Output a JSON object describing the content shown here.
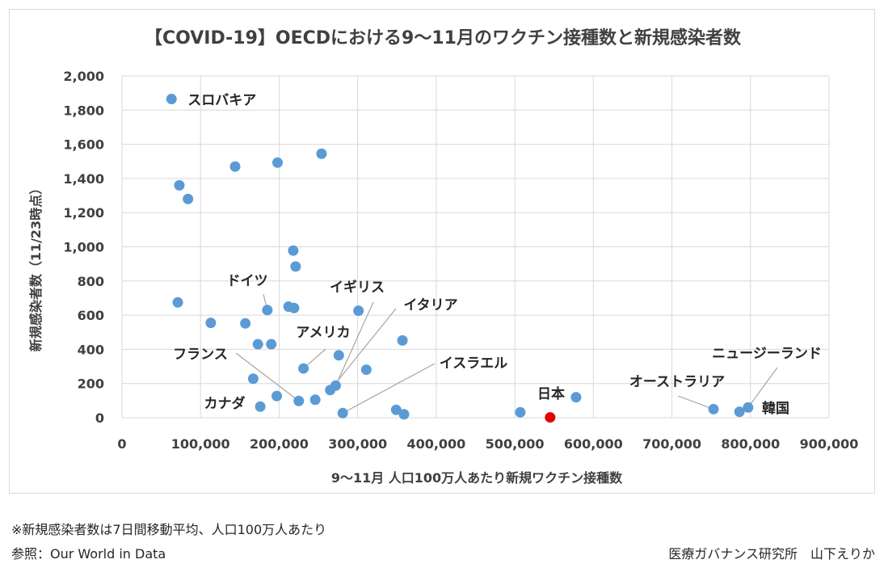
{
  "chart_data": {
    "type": "scatter",
    "title": "【COVID-19】OECDにおける9〜11月のワクチン接種数と新規感染者数",
    "xlabel": "9〜11月 人口100万人あたり新規ワクチン接種数",
    "ylabel": "新規感染者数（11/23時点）",
    "xlim": [
      0,
      900000
    ],
    "ylim": [
      0,
      2000
    ],
    "x_ticks": [
      0,
      100000,
      200000,
      300000,
      400000,
      500000,
      600000,
      700000,
      800000,
      900000
    ],
    "x_tick_labels": [
      "0",
      "100,000",
      "200,000",
      "300,000",
      "400,000",
      "500,000",
      "600,000",
      "700,000",
      "800,000",
      "900,000"
    ],
    "y_ticks": [
      0,
      200,
      400,
      600,
      800,
      1000,
      1200,
      1400,
      1600,
      1800,
      2000
    ],
    "y_tick_labels": [
      "0",
      "200",
      "400",
      "600",
      "800",
      "1,000",
      "1,200",
      "1,400",
      "1,600",
      "1,800",
      "2,000"
    ],
    "grid": true,
    "colors": {
      "point": "#5b9bd5",
      "highlight": "#e60000",
      "grid": "#d9d9d9",
      "leader": "#a6a6a6"
    },
    "points": [
      {
        "x": 63000,
        "y": 1865,
        "label": "スロバキア"
      },
      {
        "x": 73000,
        "y": 1360
      },
      {
        "x": 84000,
        "y": 1280
      },
      {
        "x": 71000,
        "y": 675
      },
      {
        "x": 113000,
        "y": 555
      },
      {
        "x": 144000,
        "y": 1470
      },
      {
        "x": 157000,
        "y": 552
      },
      {
        "x": 167000,
        "y": 228
      },
      {
        "x": 173000,
        "y": 430
      },
      {
        "x": 176000,
        "y": 65,
        "label": "カナダ"
      },
      {
        "x": 185000,
        "y": 630,
        "label": "ドイツ"
      },
      {
        "x": 190000,
        "y": 430
      },
      {
        "x": 198000,
        "y": 1493
      },
      {
        "x": 197000,
        "y": 127
      },
      {
        "x": 212000,
        "y": 650
      },
      {
        "x": 218000,
        "y": 978
      },
      {
        "x": 219000,
        "y": 642
      },
      {
        "x": 221000,
        "y": 885
      },
      {
        "x": 225000,
        "y": 98,
        "label": "フランス"
      },
      {
        "x": 231000,
        "y": 288,
        "label": "アメリカ"
      },
      {
        "x": 246000,
        "y": 105
      },
      {
        "x": 254000,
        "y": 1545
      },
      {
        "x": 265000,
        "y": 162,
        "label": "イタリア"
      },
      {
        "x": 272000,
        "y": 188,
        "label": "イギリス"
      },
      {
        "x": 276000,
        "y": 365
      },
      {
        "x": 281000,
        "y": 27,
        "label": "イスラエル"
      },
      {
        "x": 301000,
        "y": 626
      },
      {
        "x": 311000,
        "y": 281
      },
      {
        "x": 349000,
        "y": 46
      },
      {
        "x": 357000,
        "y": 452
      },
      {
        "x": 359000,
        "y": 20
      },
      {
        "x": 507000,
        "y": 32
      },
      {
        "x": 545000,
        "y": 2,
        "label": "日本",
        "highlight": true
      },
      {
        "x": 578000,
        "y": 120
      },
      {
        "x": 753000,
        "y": 50,
        "label": "オーストラリア"
      },
      {
        "x": 786000,
        "y": 35,
        "label": "韓国"
      },
      {
        "x": 797000,
        "y": 60,
        "label": "ニュージーランド"
      }
    ]
  },
  "notes": {
    "footnote": "※新規感染者数は7日間移動平均、人口100万人あたり",
    "source": "参照：Our World in Data",
    "credit": "医療ガバナンス研究所　山下えりか"
  }
}
